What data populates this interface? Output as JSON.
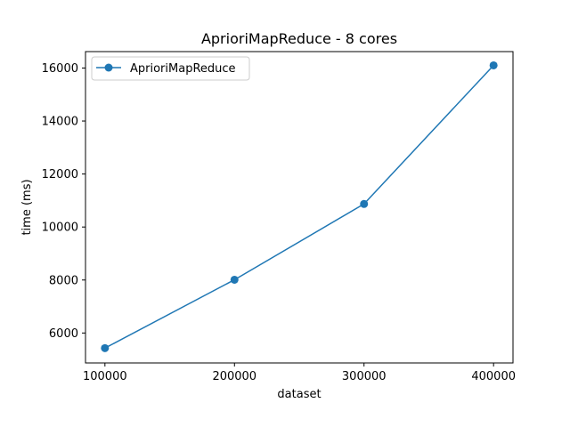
{
  "chart_data": {
    "type": "line",
    "title": "AprioriMapReduce - 8 cores",
    "xlabel": "dataset",
    "ylabel": "time (ms)",
    "x": [
      100000,
      200000,
      300000,
      400000
    ],
    "xticks": [
      "100000",
      "200000",
      "300000",
      "400000"
    ],
    "yticks": [
      "6000",
      "8000",
      "10000",
      "12000",
      "14000",
      "16000"
    ],
    "xlim": [
      85000,
      415000
    ],
    "ylim": [
      4870,
      16620
    ],
    "series": [
      {
        "name": "AprioriMapReduce",
        "values": [
          5430,
          8010,
          10870,
          16100
        ],
        "color": "#1f77b4",
        "marker": "circle"
      }
    ],
    "legend_position": "top-left",
    "grid": false
  }
}
